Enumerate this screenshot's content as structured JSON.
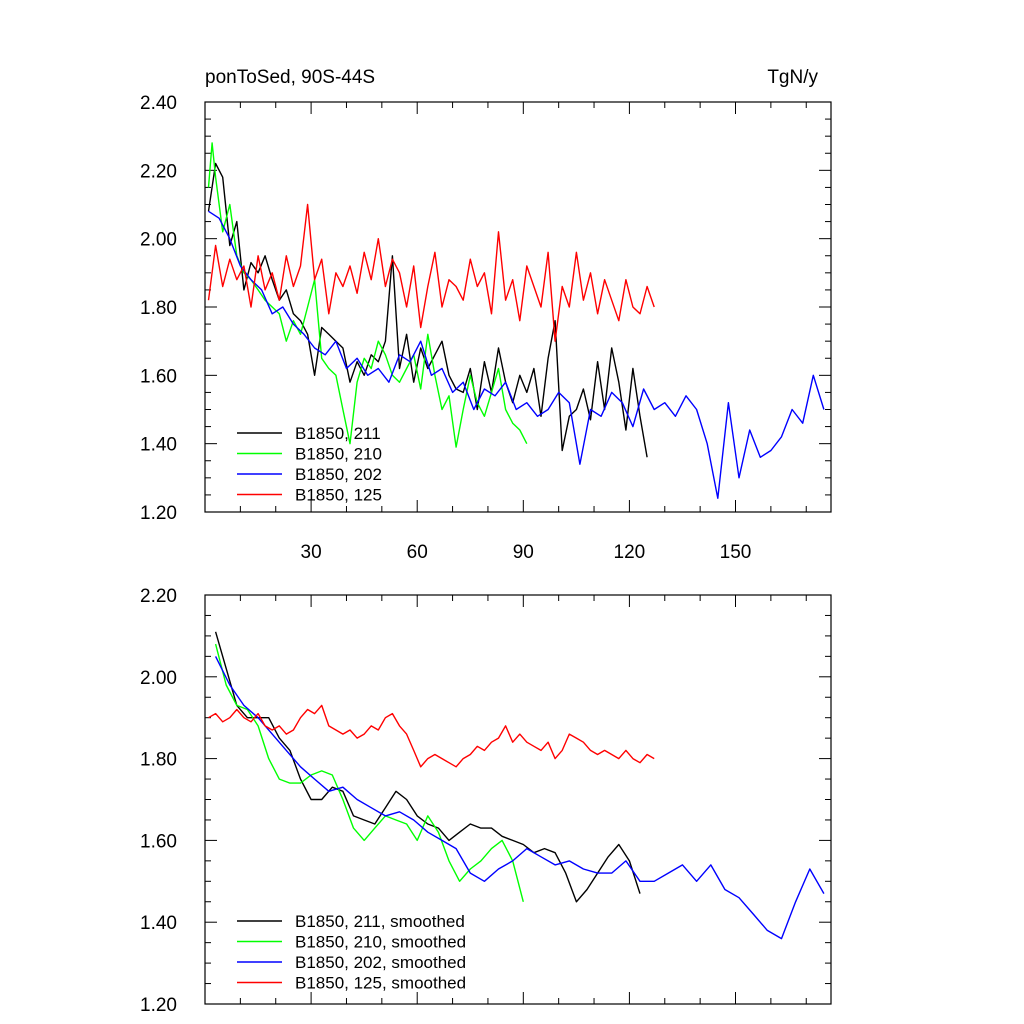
{
  "chart_data": [
    {
      "type": "line",
      "title": "ponToSed, 90S-44S",
      "units": "TgN/y",
      "xlim": [
        0,
        177
      ],
      "ylim": [
        1.2,
        2.4
      ],
      "yticks": [
        "1.20",
        "1.40",
        "1.60",
        "1.80",
        "2.00",
        "2.20",
        "2.40"
      ],
      "xticks": [
        30,
        60,
        90,
        120,
        150
      ],
      "xtick_labels": [
        "30",
        "60",
        "90",
        "120",
        "150"
      ],
      "series": [
        {
          "name": "B1850, 211",
          "color": "#000000",
          "x": [
            1,
            3,
            5,
            7,
            9,
            11,
            13,
            15,
            17,
            19,
            21,
            23,
            25,
            27,
            29,
            31,
            33,
            35,
            37,
            39,
            41,
            43,
            45,
            47,
            49,
            51,
            53,
            55,
            57,
            59,
            61,
            63,
            65,
            67,
            69,
            71,
            73,
            75,
            77,
            79,
            81,
            83,
            85,
            87,
            89,
            91,
            93,
            95,
            97,
            99,
            101,
            103,
            105,
            107,
            109,
            111,
            113,
            115,
            117,
            119,
            121,
            123,
            125
          ],
          "values": [
            2.08,
            2.22,
            2.18,
            1.98,
            2.05,
            1.85,
            1.93,
            1.9,
            1.95,
            1.88,
            1.82,
            1.85,
            1.78,
            1.76,
            1.72,
            1.6,
            1.74,
            1.72,
            1.7,
            1.68,
            1.58,
            1.64,
            1.6,
            1.66,
            1.64,
            1.7,
            1.95,
            1.62,
            1.72,
            1.58,
            1.68,
            1.62,
            1.66,
            1.7,
            1.6,
            1.56,
            1.55,
            1.62,
            1.5,
            1.64,
            1.55,
            1.68,
            1.58,
            1.52,
            1.6,
            1.55,
            1.62,
            1.48,
            1.65,
            1.76,
            1.38,
            1.48,
            1.5,
            1.56,
            1.47,
            1.64,
            1.5,
            1.68,
            1.58,
            1.44,
            1.62,
            1.48,
            1.36
          ]
        },
        {
          "name": "B1850, 210",
          "color": "#00ff00",
          "x": [
            1,
            2,
            3,
            5,
            7,
            9,
            11,
            13,
            15,
            17,
            19,
            21,
            23,
            25,
            27,
            29,
            31,
            33,
            35,
            37,
            39,
            41,
            43,
            45,
            47,
            49,
            51,
            53,
            55,
            57,
            59,
            61,
            63,
            65,
            67,
            69,
            71,
            73,
            75,
            77,
            79,
            81,
            83,
            85,
            87,
            89,
            91
          ],
          "values": [
            2.15,
            2.28,
            2.18,
            2.02,
            2.1,
            1.95,
            1.9,
            1.88,
            1.85,
            1.82,
            1.8,
            1.78,
            1.7,
            1.76,
            1.72,
            1.8,
            1.88,
            1.65,
            1.62,
            1.6,
            1.5,
            1.4,
            1.58,
            1.65,
            1.62,
            1.7,
            1.66,
            1.6,
            1.58,
            1.62,
            1.66,
            1.56,
            1.72,
            1.6,
            1.5,
            1.54,
            1.39,
            1.5,
            1.6,
            1.52,
            1.48,
            1.55,
            1.62,
            1.5,
            1.46,
            1.44,
            1.4
          ]
        },
        {
          "name": "B1850, 202",
          "color": "#0000ff",
          "x": [
            1,
            4,
            7,
            10,
            13,
            16,
            19,
            22,
            25,
            28,
            31,
            34,
            37,
            40,
            43,
            46,
            49,
            52,
            55,
            58,
            61,
            64,
            67,
            70,
            73,
            76,
            79,
            82,
            85,
            88,
            91,
            94,
            97,
            100,
            103,
            106,
            109,
            112,
            115,
            118,
            121,
            124,
            127,
            130,
            133,
            136,
            139,
            142,
            145,
            148,
            151,
            154,
            157,
            160,
            163,
            166,
            169,
            172,
            175
          ],
          "values": [
            2.08,
            2.06,
            2.0,
            1.92,
            1.88,
            1.85,
            1.78,
            1.8,
            1.75,
            1.72,
            1.68,
            1.66,
            1.7,
            1.62,
            1.65,
            1.6,
            1.62,
            1.58,
            1.66,
            1.64,
            1.7,
            1.6,
            1.62,
            1.55,
            1.58,
            1.5,
            1.56,
            1.54,
            1.58,
            1.5,
            1.52,
            1.48,
            1.5,
            1.55,
            1.52,
            1.34,
            1.5,
            1.48,
            1.55,
            1.52,
            1.45,
            1.56,
            1.5,
            1.52,
            1.48,
            1.54,
            1.5,
            1.4,
            1.24,
            1.52,
            1.3,
            1.44,
            1.36,
            1.38,
            1.42,
            1.5,
            1.46,
            1.6,
            1.5
          ]
        },
        {
          "name": "B1850, 125",
          "color": "#ff0000",
          "x": [
            1,
            3,
            5,
            7,
            9,
            11,
            13,
            15,
            17,
            19,
            21,
            23,
            25,
            27,
            29,
            31,
            33,
            35,
            37,
            39,
            41,
            43,
            45,
            47,
            49,
            51,
            53,
            55,
            57,
            59,
            61,
            63,
            65,
            67,
            69,
            71,
            73,
            75,
            77,
            79,
            81,
            83,
            85,
            87,
            89,
            91,
            93,
            95,
            97,
            99,
            101,
            103,
            105,
            107,
            109,
            111,
            113,
            115,
            117,
            119,
            121,
            123,
            125,
            127
          ],
          "values": [
            1.82,
            1.98,
            1.86,
            1.94,
            1.88,
            1.92,
            1.8,
            1.95,
            1.85,
            1.9,
            1.82,
            1.95,
            1.86,
            1.92,
            2.1,
            1.88,
            1.94,
            1.78,
            1.9,
            1.86,
            1.92,
            1.84,
            1.96,
            1.88,
            2.0,
            1.86,
            1.94,
            1.9,
            1.8,
            1.92,
            1.74,
            1.86,
            1.96,
            1.8,
            1.88,
            1.86,
            1.82,
            1.94,
            1.86,
            1.9,
            1.78,
            2.02,
            1.82,
            1.88,
            1.76,
            1.92,
            1.86,
            1.8,
            1.96,
            1.7,
            1.86,
            1.8,
            1.96,
            1.82,
            1.9,
            1.78,
            1.88,
            1.82,
            1.76,
            1.88,
            1.8,
            1.78,
            1.86,
            1.8
          ]
        }
      ]
    },
    {
      "type": "line",
      "title": "",
      "xlim": [
        0,
        177
      ],
      "ylim": [
        1.2,
        2.2
      ],
      "yticks": [
        "1.20",
        "1.40",
        "1.60",
        "1.80",
        "2.00",
        "2.20"
      ],
      "xticks": [
        30,
        60,
        90,
        120,
        150
      ],
      "xtick_labels": [],
      "series": [
        {
          "name": "B1850, 211, smoothed",
          "color": "#000000",
          "x": [
            3,
            6,
            9,
            12,
            15,
            18,
            21,
            24,
            27,
            30,
            33,
            36,
            39,
            42,
            45,
            48,
            51,
            54,
            57,
            60,
            63,
            66,
            69,
            72,
            75,
            78,
            81,
            84,
            87,
            90,
            93,
            96,
            99,
            102,
            105,
            108,
            111,
            114,
            117,
            120,
            123
          ],
          "values": [
            2.11,
            2.02,
            1.93,
            1.9,
            1.9,
            1.9,
            1.85,
            1.82,
            1.75,
            1.7,
            1.7,
            1.73,
            1.72,
            1.66,
            1.65,
            1.64,
            1.68,
            1.72,
            1.7,
            1.66,
            1.64,
            1.63,
            1.6,
            1.62,
            1.64,
            1.63,
            1.63,
            1.61,
            1.6,
            1.59,
            1.57,
            1.58,
            1.57,
            1.52,
            1.45,
            1.48,
            1.52,
            1.56,
            1.59,
            1.55,
            1.47
          ]
        },
        {
          "name": "B1850, 210, smoothed",
          "color": "#00ff00",
          "x": [
            3,
            6,
            9,
            12,
            15,
            18,
            21,
            24,
            27,
            30,
            33,
            36,
            39,
            42,
            45,
            48,
            51,
            54,
            57,
            60,
            63,
            66,
            69,
            72,
            75,
            78,
            81,
            84,
            87,
            90
          ],
          "values": [
            2.08,
            1.98,
            1.93,
            1.92,
            1.88,
            1.8,
            1.75,
            1.74,
            1.74,
            1.76,
            1.77,
            1.76,
            1.7,
            1.63,
            1.6,
            1.63,
            1.66,
            1.65,
            1.64,
            1.6,
            1.66,
            1.62,
            1.55,
            1.5,
            1.53,
            1.55,
            1.58,
            1.6,
            1.55,
            1.45
          ]
        },
        {
          "name": "B1850, 202, smoothed",
          "color": "#0000ff",
          "x": [
            3,
            7,
            11,
            15,
            19,
            23,
            27,
            31,
            35,
            39,
            43,
            47,
            51,
            55,
            59,
            63,
            67,
            71,
            75,
            79,
            83,
            87,
            91,
            95,
            99,
            103,
            107,
            111,
            115,
            119,
            123,
            127,
            131,
            135,
            139,
            143,
            147,
            151,
            155,
            159,
            163,
            167,
            171,
            175
          ],
          "values": [
            2.05,
            1.98,
            1.93,
            1.9,
            1.86,
            1.82,
            1.78,
            1.75,
            1.72,
            1.73,
            1.7,
            1.68,
            1.66,
            1.67,
            1.65,
            1.62,
            1.6,
            1.58,
            1.52,
            1.5,
            1.53,
            1.55,
            1.58,
            1.56,
            1.54,
            1.55,
            1.53,
            1.52,
            1.52,
            1.55,
            1.5,
            1.5,
            1.52,
            1.54,
            1.5,
            1.54,
            1.48,
            1.46,
            1.42,
            1.38,
            1.36,
            1.45,
            1.53,
            1.47
          ]
        },
        {
          "name": "B1850, 125, smoothed",
          "color": "#ff0000",
          "x": [
            1,
            3,
            5,
            7,
            9,
            11,
            13,
            15,
            17,
            19,
            21,
            23,
            25,
            27,
            29,
            31,
            33,
            35,
            37,
            39,
            41,
            43,
            45,
            47,
            49,
            51,
            53,
            55,
            57,
            59,
            61,
            63,
            65,
            67,
            69,
            71,
            73,
            75,
            77,
            79,
            81,
            83,
            85,
            87,
            89,
            91,
            93,
            95,
            97,
            99,
            101,
            103,
            105,
            107,
            109,
            111,
            113,
            115,
            117,
            119,
            121,
            123,
            125,
            127
          ],
          "values": [
            1.9,
            1.91,
            1.89,
            1.9,
            1.92,
            1.9,
            1.89,
            1.91,
            1.88,
            1.87,
            1.88,
            1.86,
            1.87,
            1.9,
            1.92,
            1.91,
            1.93,
            1.88,
            1.87,
            1.86,
            1.87,
            1.85,
            1.86,
            1.88,
            1.87,
            1.9,
            1.91,
            1.88,
            1.86,
            1.82,
            1.78,
            1.8,
            1.81,
            1.8,
            1.79,
            1.78,
            1.8,
            1.81,
            1.83,
            1.82,
            1.84,
            1.85,
            1.88,
            1.84,
            1.86,
            1.84,
            1.83,
            1.82,
            1.84,
            1.8,
            1.82,
            1.86,
            1.85,
            1.84,
            1.82,
            1.81,
            1.82,
            1.81,
            1.8,
            1.82,
            1.8,
            1.79,
            1.81,
            1.8
          ]
        }
      ]
    }
  ]
}
